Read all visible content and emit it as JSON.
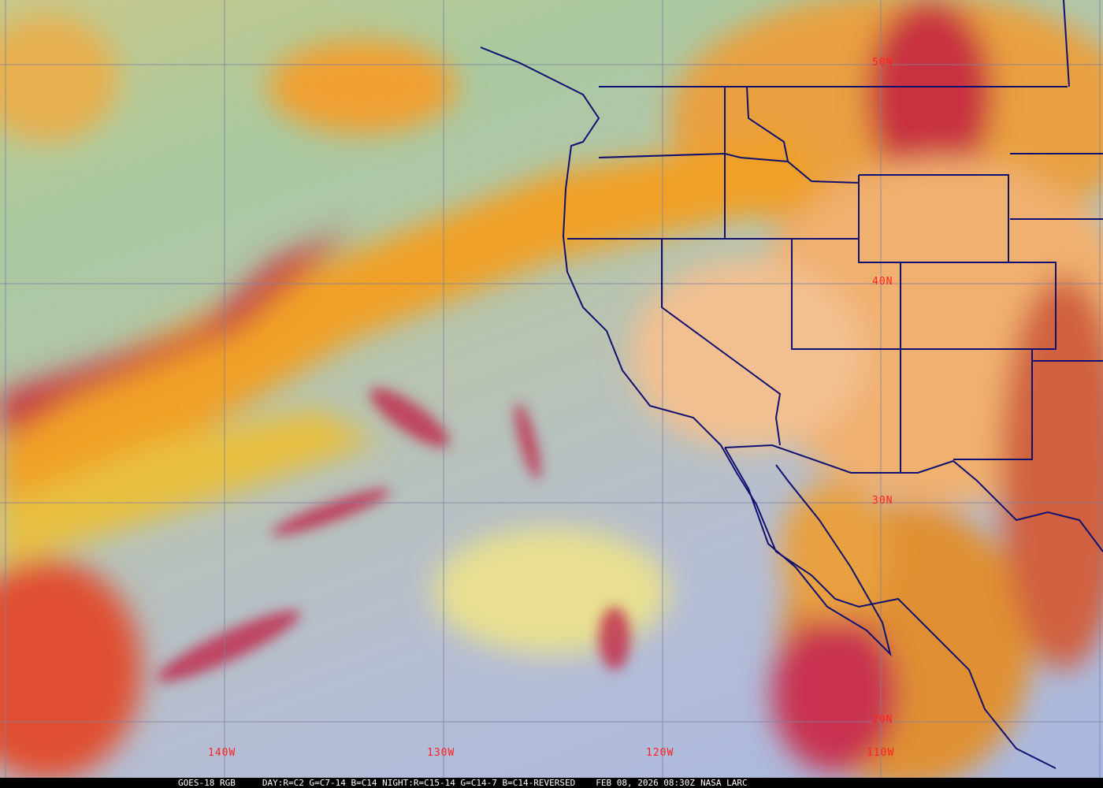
{
  "map": {
    "product": "GOES-18 RGB",
    "recipe": "DAY:R=C2 G=C7-14 B=C14 NIGHT:R=C15-14 G=C14-7 B=C14-REVERSED",
    "datetime": "FEB 08, 2026 08:30Z",
    "credit": "NASA LARC",
    "longitude_labels": [
      "140W",
      "130W",
      "120W",
      "110W"
    ],
    "latitude_labels": [
      "50N",
      "40N",
      "30N",
      "20N"
    ],
    "colors": {
      "grid": "#8080a0",
      "borders": "#101070",
      "labels": "#ff2020",
      "cloud_high": "#d02040",
      "cloud_mid": "#f0a030",
      "ocean": "#a9b8e0"
    }
  }
}
